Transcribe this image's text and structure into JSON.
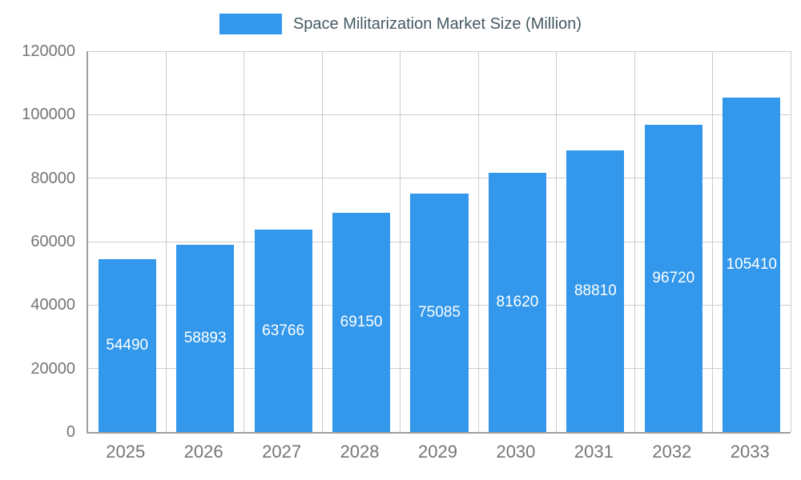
{
  "legend": {
    "label": "Space Militarization Market Size (Million)"
  },
  "chart_data": {
    "type": "bar",
    "title": "Space Militarization Market Size (Million)",
    "categories": [
      "2025",
      "2026",
      "2027",
      "2028",
      "2029",
      "2030",
      "2031",
      "2032",
      "2033"
    ],
    "values": [
      54490,
      58893,
      63766,
      69150,
      75085,
      81620,
      88810,
      96720,
      105410
    ],
    "xlabel": "",
    "ylabel": "",
    "ylim": [
      0,
      120000
    ],
    "ytick_step": 20000,
    "ytick_labels": [
      "0",
      "20000",
      "40000",
      "60000",
      "80000",
      "100000",
      "120000"
    ],
    "grid": true,
    "legend_position": "top",
    "bar_color": "#3398EB",
    "bar_label_color": "#ffffff",
    "axis_text_color": "#757575",
    "title_color": "#455A64",
    "grid_color": "#cccccc",
    "axis_line_color": "#9e9e9e"
  }
}
